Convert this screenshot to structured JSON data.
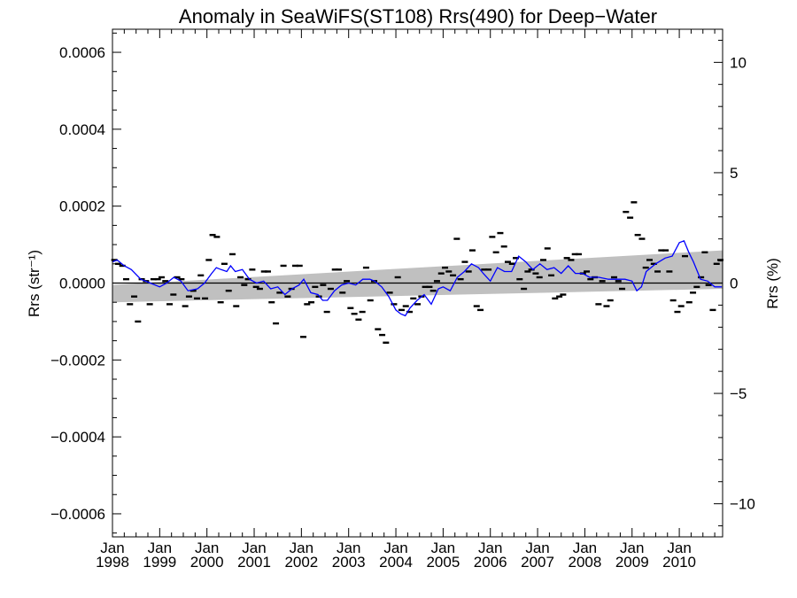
{
  "chart_data": {
    "type": "scatter",
    "title": "Anomaly in SeaWiFS(ST108) Rrs(490) for Deep−Water",
    "ylabel_left": "Rrs (str⁻¹)",
    "ylabel_right": "Rrs (%)",
    "xlim": [
      1998.0,
      2010.917
    ],
    "ylim": [
      -0.00066,
      0.00066
    ],
    "ylim_right_percent": [
      -11.5,
      11.5
    ],
    "y_ticks": [
      -0.0006,
      -0.0004,
      -0.0002,
      0.0,
      0.0002,
      0.0004,
      0.0006
    ],
    "y_tick_labels": [
      "−0.0006",
      "−0.0004",
      "−0.0002",
      "0.0000",
      "0.0002",
      "0.0004",
      "0.0006"
    ],
    "y_right_ticks": [
      -10,
      -5,
      0,
      5,
      10
    ],
    "y_right_tick_labels": [
      "−10",
      "−5",
      "0",
      "5",
      "10"
    ],
    "x_ticks": [
      1998,
      1999,
      2000,
      2001,
      2002,
      2003,
      2004,
      2005,
      2006,
      2007,
      2008,
      2009,
      2010
    ],
    "x_tick_labels": [
      {
        "month": "Jan",
        "year": "1998"
      },
      {
        "month": "Jan",
        "year": "1999"
      },
      {
        "month": "Jan",
        "year": "2000"
      },
      {
        "month": "Jan",
        "year": "2001"
      },
      {
        "month": "Jan",
        "year": "2002"
      },
      {
        "month": "Jan",
        "year": "2003"
      },
      {
        "month": "Jan",
        "year": "2004"
      },
      {
        "month": "Jan",
        "year": "2005"
      },
      {
        "month": "Jan",
        "year": "2006"
      },
      {
        "month": "Jan",
        "year": "2007"
      },
      {
        "month": "Jan",
        "year": "2008"
      },
      {
        "month": "Jan",
        "year": "2009"
      },
      {
        "month": "Jan",
        "year": "2010"
      }
    ],
    "colors": {
      "points": "#000000",
      "running_mean": "#0000ff",
      "trend_band": "#c0c0c0",
      "zero_line": "#000000"
    },
    "series": [
      {
        "kind": "monthly_anomaly_points",
        "x": [
          1998.04,
          1998.12,
          1998.21,
          1998.29,
          1998.37,
          1998.46,
          1998.54,
          1998.62,
          1998.71,
          1998.79,
          1998.87,
          1998.96,
          1999.04,
          1999.12,
          1999.21,
          1999.29,
          1999.37,
          1999.46,
          1999.54,
          1999.62,
          1999.71,
          1999.79,
          1999.87,
          1999.96,
          2000.04,
          2000.12,
          2000.21,
          2000.29,
          2000.37,
          2000.46,
          2000.54,
          2000.62,
          2000.71,
          2000.79,
          2000.87,
          2000.96,
          2001.04,
          2001.12,
          2001.21,
          2001.29,
          2001.37,
          2001.46,
          2001.54,
          2001.62,
          2001.71,
          2001.79,
          2001.87,
          2001.96,
          2002.04,
          2002.12,
          2002.21,
          2002.29,
          2002.37,
          2002.46,
          2002.54,
          2002.62,
          2002.71,
          2002.79,
          2002.87,
          2002.96,
          2003.04,
          2003.12,
          2003.21,
          2003.29,
          2003.37,
          2003.46,
          2003.54,
          2003.62,
          2003.71,
          2003.79,
          2003.87,
          2003.96,
          2004.04,
          2004.12,
          2004.21,
          2004.29,
          2004.37,
          2004.46,
          2004.54,
          2004.62,
          2004.71,
          2004.79,
          2004.87,
          2004.96,
          2005.04,
          2005.12,
          2005.21,
          2005.29,
          2005.37,
          2005.46,
          2005.54,
          2005.62,
          2005.71,
          2005.79,
          2005.87,
          2005.96,
          2006.04,
          2006.12,
          2006.21,
          2006.29,
          2006.37,
          2006.46,
          2006.54,
          2006.62,
          2006.71,
          2006.79,
          2006.87,
          2006.96,
          2007.04,
          2007.12,
          2007.21,
          2007.29,
          2007.37,
          2007.46,
          2007.54,
          2007.62,
          2007.71,
          2007.79,
          2007.87,
          2007.96,
          2008.04,
          2008.12,
          2008.21,
          2008.29,
          2008.37,
          2008.46,
          2008.54,
          2008.62,
          2008.71,
          2008.79,
          2008.87,
          2008.96,
          2009.04,
          2009.12,
          2009.21,
          2009.29,
          2009.37,
          2009.46,
          2009.54,
          2009.62,
          2009.71,
          2009.79,
          2009.87,
          2009.96,
          2010.04,
          2010.12,
          2010.21,
          2010.29,
          2010.37,
          2010.46,
          2010.54,
          2010.62,
          2010.71,
          2010.79,
          2010.87
        ],
        "y": [
          6e-05,
          5e-05,
          4.5e-05,
          1e-05,
          -5.5e-05,
          -3.5e-05,
          -0.0001,
          1e-05,
          5e-06,
          -5.5e-05,
          1e-05,
          1e-05,
          1.5e-05,
          5e-06,
          -5.5e-05,
          -3e-05,
          1.5e-05,
          1e-05,
          -6e-05,
          -3.5e-05,
          -2e-05,
          -4e-05,
          2e-05,
          -4e-05,
          6e-05,
          0.000125,
          0.00012,
          -5e-05,
          5e-05,
          -2e-05,
          7.5e-05,
          -6e-05,
          1.5e-05,
          -5e-06,
          1e-05,
          3.5e-05,
          -1e-05,
          -1.5e-05,
          3e-05,
          3e-05,
          -5e-05,
          -0.000105,
          -2.5e-05,
          4.5e-05,
          -3.5e-05,
          -1.5e-05,
          4.5e-05,
          4.5e-05,
          -0.00014,
          -5.5e-05,
          -5e-05,
          -1e-05,
          -3.5e-05,
          -5e-06,
          -7.5e-05,
          -1.5e-05,
          3.5e-05,
          3.5e-05,
          -2.5e-05,
          5e-06,
          -6.5e-05,
          -8e-05,
          -9.5e-05,
          -7.5e-05,
          4e-05,
          -4.5e-05,
          5e-06,
          -0.00012,
          -0.000135,
          -0.000155,
          -2.5e-05,
          -5.5e-05,
          1.5e-05,
          -7e-05,
          -6e-05,
          -7.5e-05,
          -4e-05,
          -5.5e-05,
          -3.5e-05,
          -1e-05,
          -1e-05,
          -2e-05,
          5e-06,
          2.5e-05,
          4e-05,
          3e-05,
          2e-05,
          0.000115,
          1e-05,
          5.5e-05,
          3e-05,
          8.5e-05,
          -6e-05,
          -7e-05,
          3.5e-05,
          3.5e-05,
          0.00012,
          8e-05,
          0.00013,
          9.5e-05,
          5.5e-05,
          5e-05,
          6.5e-05,
          1e-05,
          -1.5e-05,
          3e-05,
          3.5e-05,
          2.5e-05,
          1.5e-05,
          6e-05,
          9e-05,
          2e-05,
          -4e-05,
          -3.5e-05,
          -3e-05,
          6.5e-05,
          6e-05,
          7.5e-05,
          7.5e-05,
          2.5e-05,
          3e-05,
          1e-05,
          1.5e-05,
          -5.5e-05,
          5e-06,
          -6e-05,
          -4.5e-05,
          1.5e-05,
          5e-06,
          -1.5e-05,
          0.000185,
          0.00017,
          0.00021,
          0.000125,
          0.000115,
          4e-05,
          6e-05,
          5e-05,
          3e-05,
          8.5e-05,
          8.5e-05,
          3e-05,
          -4.5e-05,
          -7.5e-05,
          -6e-05,
          7e-05,
          -5e-05,
          -2.5e-05,
          -1e-05,
          1.5e-05,
          8e-05,
          -5e-06,
          -7e-05,
          5e-05,
          6e-05
        ]
      },
      {
        "kind": "running_mean",
        "x": [
          1998.0,
          1998.1,
          1998.25,
          1998.4,
          1998.6,
          1998.8,
          1999.0,
          1999.15,
          1999.3,
          1999.45,
          1999.6,
          1999.8,
          1999.95,
          2000.1,
          2000.2,
          2000.3,
          2000.42,
          2000.5,
          2000.6,
          2000.75,
          2000.9,
          2001.05,
          2001.2,
          2001.35,
          2001.5,
          2001.65,
          2001.8,
          2001.95,
          2002.05,
          2002.2,
          2002.35,
          2002.45,
          2002.55,
          2002.7,
          2002.85,
          2003.0,
          2003.15,
          2003.3,
          2003.45,
          2003.55,
          2003.7,
          2003.85,
          2004.0,
          2004.1,
          2004.2,
          2004.3,
          2004.45,
          2004.6,
          2004.75,
          2004.9,
          2005.0,
          2005.15,
          2005.3,
          2005.45,
          2005.6,
          2005.75,
          2005.85,
          2006.0,
          2006.15,
          2006.3,
          2006.45,
          2006.6,
          2006.75,
          2006.9,
          2007.05,
          2007.2,
          2007.35,
          2007.5,
          2007.65,
          2007.8,
          2007.95,
          2008.1,
          2008.3,
          2008.5,
          2008.7,
          2008.85,
          2009.0,
          2009.1,
          2009.2,
          2009.3,
          2009.5,
          2009.7,
          2009.85,
          2010.0,
          2010.1,
          2010.2,
          2010.3,
          2010.45,
          2010.6,
          2010.75,
          2010.9
        ],
        "y": [
          5.5e-05,
          6e-05,
          4.5e-05,
          3.5e-05,
          1e-05,
          0.0,
          -1e-05,
          0.0,
          1.5e-05,
          5e-06,
          -2e-05,
          -1.5e-05,
          0.0,
          2.5e-05,
          4e-05,
          3.5e-05,
          3e-05,
          4.5e-05,
          3e-05,
          3.5e-05,
          1e-05,
          0.0,
          5e-06,
          -1.5e-05,
          -1e-05,
          -3e-05,
          -1.5e-05,
          -5e-06,
          1e-05,
          -2.5e-05,
          -3e-05,
          -4.5e-05,
          -4.5e-05,
          -2e-05,
          -5e-06,
          0.0,
          -5e-06,
          1e-05,
          1e-05,
          5e-06,
          -1e-05,
          -3.5e-05,
          -7e-05,
          -8e-05,
          -8.5e-05,
          -6.5e-05,
          -4.5e-05,
          -3e-05,
          -5.5e-05,
          -1.5e-05,
          -1e-05,
          -2e-05,
          1.5e-05,
          3e-05,
          5e-05,
          4e-05,
          2.5e-05,
          5e-06,
          4e-05,
          3e-05,
          3e-05,
          7e-05,
          5.5e-05,
          3.5e-05,
          5e-05,
          3.5e-05,
          4e-05,
          2.5e-05,
          4.5e-05,
          2.5e-05,
          2.5e-05,
          1.5e-05,
          1.5e-05,
          1e-05,
          1e-05,
          1e-05,
          5e-06,
          -2e-05,
          -1e-05,
          3e-05,
          5e-05,
          6.5e-05,
          7e-05,
          0.000105,
          0.00011,
          8e-05,
          5.5e-05,
          1e-05,
          5e-06,
          -1e-05,
          -1e-05
        ]
      },
      {
        "kind": "trend_confidence_band",
        "x": [
          1998.0,
          2010.917
        ],
        "y_upper": [
          -5e-06,
          8.5e-05
        ],
        "y_lower": [
          -5e-05,
          -1.5e-05
        ]
      }
    ]
  }
}
